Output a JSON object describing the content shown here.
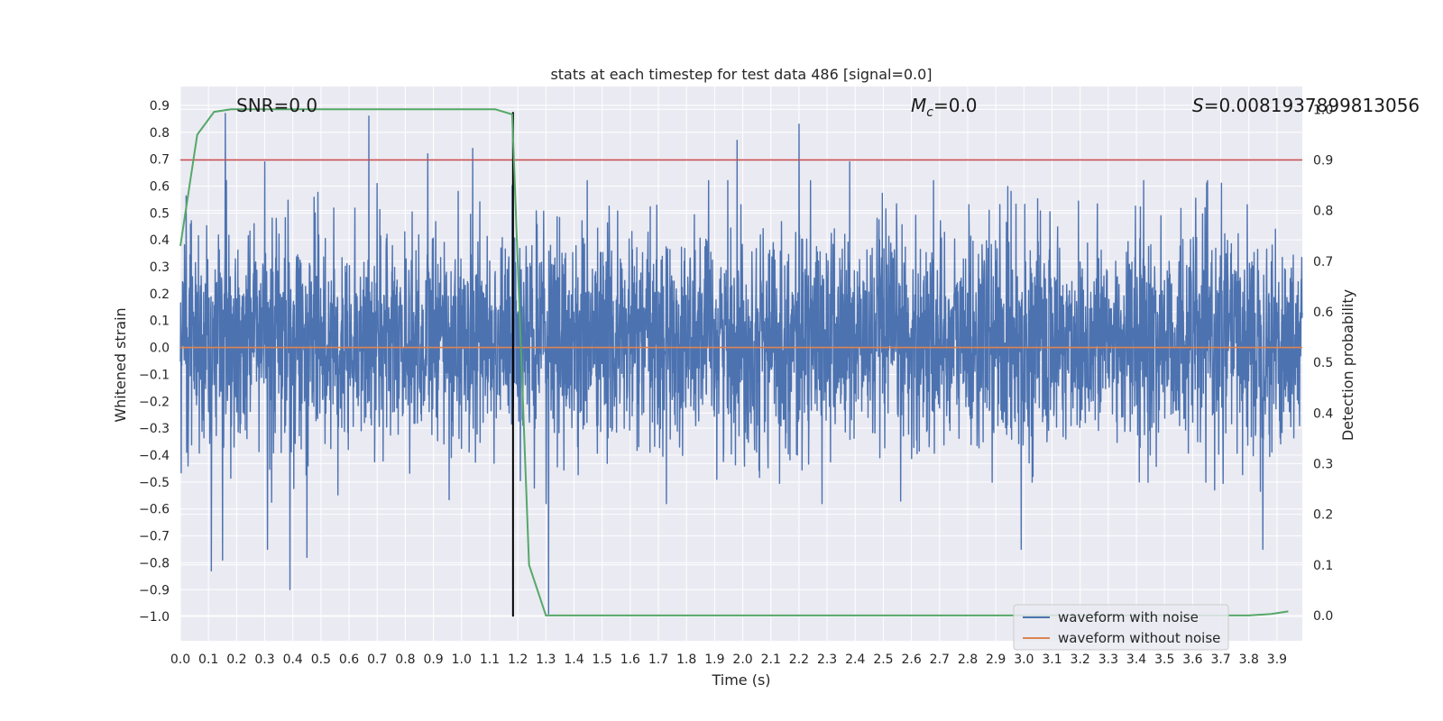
{
  "chart_data": {
    "type": "line",
    "title": "stats at each timestep for test data 486 [signal=0.0]",
    "xlabel": "Time (s)",
    "ylabel": "Whitened strain",
    "y2label": "Detection probability",
    "xlim": [
      0.0,
      3.99
    ],
    "ylim": [
      -1.09,
      0.97
    ],
    "y2lim": [
      -0.05,
      1.045
    ],
    "xticks": [
      "0.0",
      "0.1",
      "0.2",
      "0.3",
      "0.4",
      "0.5",
      "0.6",
      "0.7",
      "0.8",
      "0.9",
      "1.0",
      "1.1",
      "1.2",
      "1.3",
      "1.4",
      "1.5",
      "1.6",
      "1.7",
      "1.8",
      "1.9",
      "2.0",
      "2.1",
      "2.2",
      "2.3",
      "2.4",
      "2.5",
      "2.6",
      "2.7",
      "2.8",
      "2.9",
      "3.0",
      "3.1",
      "3.2",
      "3.3",
      "3.4",
      "3.5",
      "3.6",
      "3.7",
      "3.8",
      "3.9"
    ],
    "yticks": [
      "0.9",
      "0.8",
      "0.7",
      "0.6",
      "0.5",
      "0.4",
      "0.3",
      "0.2",
      "0.1",
      "0.0",
      "−0.1",
      "−0.2",
      "−0.3",
      "−0.4",
      "−0.5",
      "−0.6",
      "−0.7",
      "−0.8",
      "−0.9",
      "−1.0"
    ],
    "y2ticks": [
      "1.0",
      "0.9",
      "0.8",
      "0.7",
      "0.6",
      "0.5",
      "0.4",
      "0.3",
      "0.2",
      "0.1",
      "0.0"
    ],
    "grid": true,
    "series": [
      {
        "name": "waveform with noise",
        "color": "#4c72b0",
        "kind": "noise",
        "n_samples": 4096,
        "typical_range": [
          -0.55,
          0.6
        ],
        "peaks": [
          {
            "x": 0.16,
            "y": 0.87
          },
          {
            "x": 0.67,
            "y": 0.86
          },
          {
            "x": 2.2,
            "y": 0.83
          },
          {
            "x": 1.98,
            "y": 0.77
          },
          {
            "x": 1.04,
            "y": 0.74
          },
          {
            "x": 0.88,
            "y": 0.72
          },
          {
            "x": 0.3,
            "y": 0.69
          },
          {
            "x": 2.38,
            "y": 0.69
          },
          {
            "x": 0.39,
            "y": -0.9
          },
          {
            "x": 0.11,
            "y": -0.83
          },
          {
            "x": 0.15,
            "y": -0.79
          },
          {
            "x": 0.45,
            "y": -0.78
          },
          {
            "x": 0.31,
            "y": -0.75
          },
          {
            "x": 2.99,
            "y": -0.75
          },
          {
            "x": 3.85,
            "y": -0.75
          },
          {
            "x": 1.31,
            "y": -0.99
          }
        ]
      },
      {
        "name": "waveform without noise",
        "color": "#dd8452",
        "x": [
          0.0,
          3.99
        ],
        "y": [
          0.0,
          0.0
        ]
      },
      {
        "name": "detection probability",
        "axis": "right",
        "color": "#55a868",
        "x": [
          0.0,
          0.06,
          0.12,
          0.18,
          1.12,
          1.18,
          1.24,
          1.3,
          1.4,
          3.8,
          3.88,
          3.94
        ],
        "y": [
          0.73,
          0.95,
          0.995,
          1.0,
          1.0,
          0.99,
          0.1,
          0.0,
          0.0,
          0.0,
          0.003,
          0.008
        ]
      }
    ],
    "reference_lines": [
      {
        "name": "threshold",
        "axis": "right",
        "orientation": "horizontal",
        "value": 0.9,
        "color": "#c44e52"
      },
      {
        "name": "trigger-time",
        "orientation": "vertical",
        "value": 1.183,
        "ymin": -1.0,
        "ymax": 0.875,
        "color": "#000000"
      }
    ],
    "annotations": [
      {
        "label": "SNR=0.0"
      },
      {
        "label_main": "M",
        "label_sub": "c",
        "label_rest": "=0.0"
      },
      {
        "label_main": "S",
        "label_rest": "=0.0081937899813056"
      }
    ],
    "legend": {
      "position": "lower-right",
      "entries": [
        {
          "label": "waveform with noise",
          "color": "#4c72b0"
        },
        {
          "label": "waveform without noise",
          "color": "#dd8452"
        }
      ]
    }
  }
}
